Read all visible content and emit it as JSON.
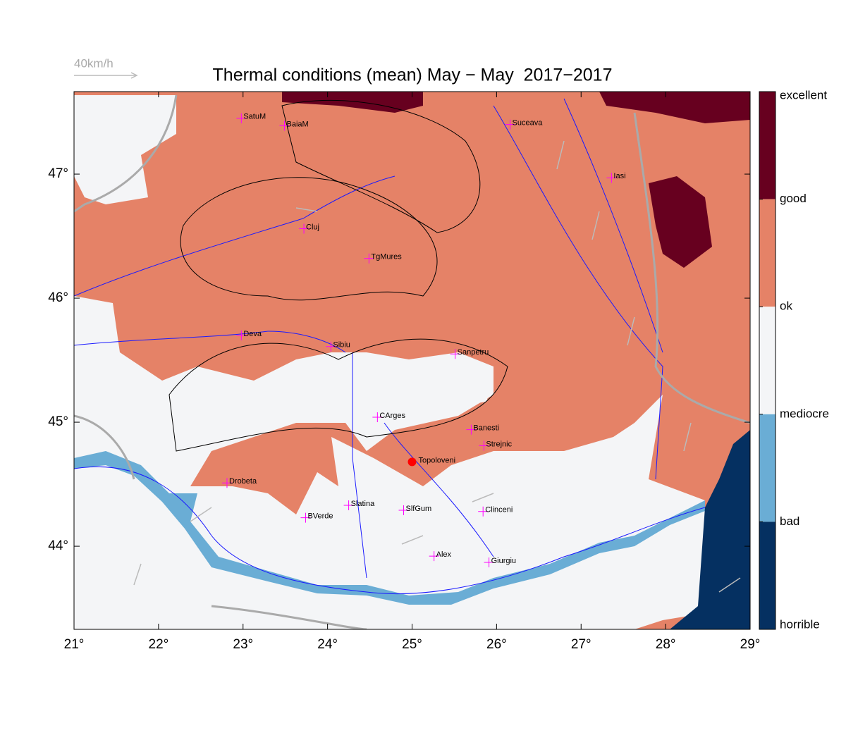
{
  "title": "Thermal conditions (mean) May − May  2017−2017",
  "wind_scale": "40km/h",
  "xlim": [
    21,
    29
  ],
  "ylim": [
    43.33,
    47.665
  ],
  "xticks": [
    {
      "value": 21,
      "label": "21°"
    },
    {
      "value": 22,
      "label": "22°"
    },
    {
      "value": 23,
      "label": "23°"
    },
    {
      "value": 24,
      "label": "24°"
    },
    {
      "value": 25,
      "label": "25°"
    },
    {
      "value": 26,
      "label": "26°"
    },
    {
      "value": 27,
      "label": "27°"
    },
    {
      "value": 28,
      "label": "28°"
    },
    {
      "value": 29,
      "label": "29°"
    }
  ],
  "yticks": [
    {
      "value": 44,
      "label": "44°"
    },
    {
      "value": 45,
      "label": "45°"
    },
    {
      "value": 46,
      "label": "46°"
    },
    {
      "value": 47,
      "label": "47°"
    }
  ],
  "colorbar": {
    "labels": [
      "excellent",
      "good",
      "ok",
      "mediocre",
      "bad",
      "horrible"
    ],
    "colors": [
      "#67001f",
      "#e58267",
      "#f4f5f7",
      "#6aadd5",
      "#053061"
    ]
  },
  "cities": [
    {
      "name": "SatuM",
      "lon": 22.98,
      "lat": 47.45
    },
    {
      "name": "BaiaM",
      "lon": 23.49,
      "lat": 47.39
    },
    {
      "name": "Suceava",
      "lon": 26.16,
      "lat": 47.4
    },
    {
      "name": "Iasi",
      "lon": 27.36,
      "lat": 46.97
    },
    {
      "name": "Cluj",
      "lon": 23.72,
      "lat": 46.56
    },
    {
      "name": "TgMures",
      "lon": 24.49,
      "lat": 46.32
    },
    {
      "name": "Deva",
      "lon": 22.98,
      "lat": 45.7
    },
    {
      "name": "Sibiu",
      "lon": 24.04,
      "lat": 45.61
    },
    {
      "name": "Sanpetru",
      "lon": 25.51,
      "lat": 45.55
    },
    {
      "name": "CArges",
      "lon": 24.59,
      "lat": 45.04
    },
    {
      "name": "Banesti",
      "lon": 25.7,
      "lat": 44.94
    },
    {
      "name": "Strejnic",
      "lon": 25.85,
      "lat": 44.81
    },
    {
      "name": "Drobeta",
      "lon": 22.81,
      "lat": 44.51
    },
    {
      "name": "Slatina",
      "lon": 24.25,
      "lat": 44.33
    },
    {
      "name": "SlfGum",
      "lon": 24.9,
      "lat": 44.29
    },
    {
      "name": "Clinceni",
      "lon": 25.84,
      "lat": 44.28
    },
    {
      "name": "BVerde",
      "lon": 23.74,
      "lat": 44.23
    },
    {
      "name": "Alex",
      "lon": 25.26,
      "lat": 43.92
    },
    {
      "name": "Giurgiu",
      "lon": 25.91,
      "lat": 43.87
    }
  ],
  "site": {
    "name": "Topoloveni",
    "lon": 25.0,
    "lat": 44.68,
    "color": "#ff0000"
  }
}
